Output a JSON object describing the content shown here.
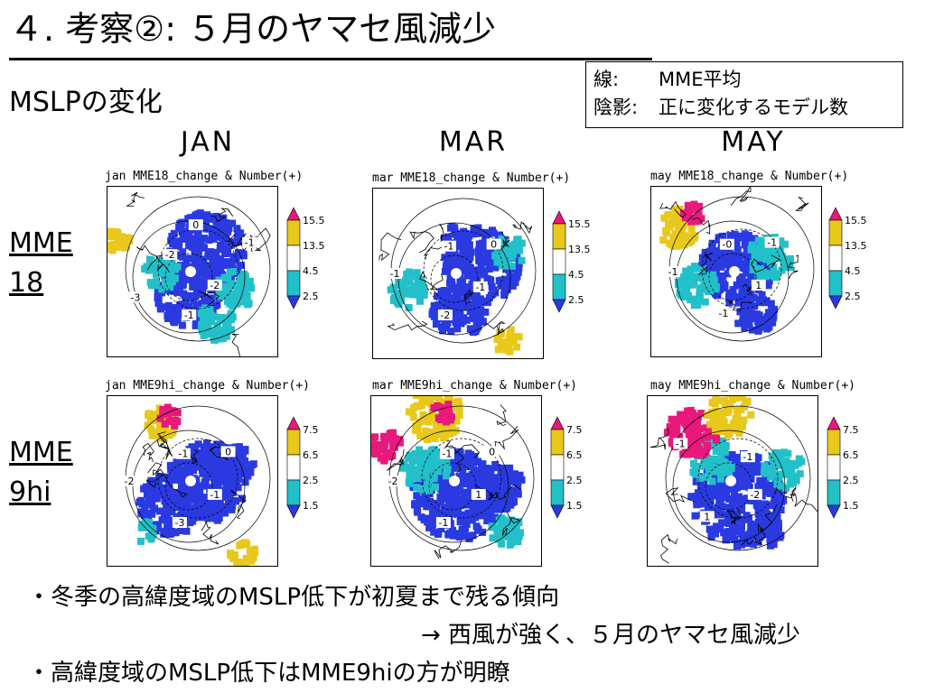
{
  "slide": {
    "title": "４. 考察②:  ５月のヤマセ風減少",
    "subtitle": "MSLPの変化"
  },
  "legend": {
    "line1_key": "線:",
    "line1_value": "MME平均",
    "line2_key": "陰影:",
    "line2_value": "正に変化するモデル数"
  },
  "columns": [
    "JAN",
    "MAR",
    "MAY"
  ],
  "rows": [
    {
      "label_line1": "MME",
      "label_line2": "18",
      "panels": [
        {
          "title": "jan  MME18_change & Number(+)"
        },
        {
          "title": "mar  MME18_change & Number(+)"
        },
        {
          "title": "may  MME18_change & Number(+)"
        }
      ],
      "colorbar": {
        "ticks": [
          "15.5",
          "13.5",
          "4.5",
          "2.5"
        ],
        "colors": [
          "#e8187c",
          "#e8c81a",
          "#ffffff",
          "#22c0c8",
          "#2a3ae0"
        ]
      },
      "contour_labels": [
        [
          "-2",
          "-1",
          "-3",
          "-2",
          "0",
          "-1"
        ],
        [
          "-1",
          "-2",
          "-1",
          "-1",
          "0"
        ],
        [
          "1",
          "-1",
          "-1",
          "-0",
          "-1"
        ]
      ]
    },
    {
      "label_line1": "MME",
      "label_line2": "9hi",
      "panels": [
        {
          "title": "jan  MME9hi_change & Number(+)"
        },
        {
          "title": "mar  MME9hi_change & Number(+)"
        },
        {
          "title": "may  MME9hi_change & Number(+)"
        }
      ],
      "colorbar": {
        "ticks": [
          "7.5",
          "6.5",
          "2.5",
          "1.5"
        ],
        "colors": [
          "#e8187c",
          "#e8c81a",
          "#ffffff",
          "#22c0c8",
          "#2a3ae0"
        ]
      },
      "contour_labels": [
        [
          "-1",
          "-3",
          "-2",
          "-1",
          "0"
        ],
        [
          "1",
          "-1",
          "-2",
          "-1",
          "0"
        ],
        [
          "-2",
          "1",
          "-1",
          "-1"
        ]
      ]
    }
  ],
  "bullets": {
    "b1": "・冬季の高緯度域のMSLP低下が初夏まで残る傾向",
    "b1_cont": "→ 西風が強く、５月のヤマセ風減少",
    "b2": "・高緯度域のMSLP低下はMME9hiの方が明瞭"
  }
}
